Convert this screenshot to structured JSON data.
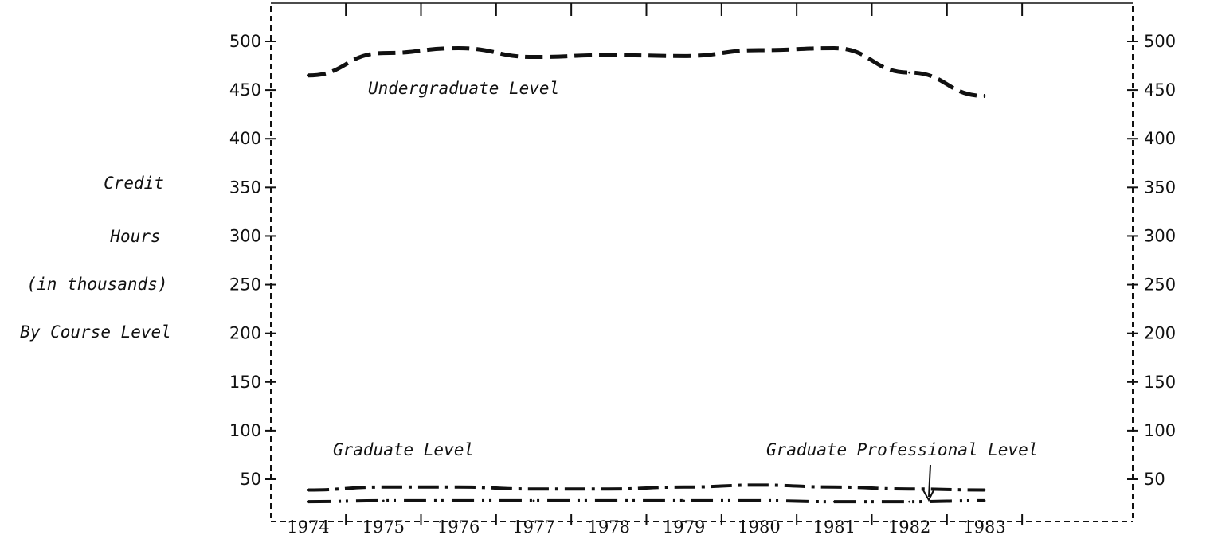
{
  "chart_data": {
    "type": "line",
    "ylabel_lines": [
      "Credit",
      "Hours",
      "(in thousands)",
      "By Course Level"
    ],
    "x": [
      "1974",
      "1975",
      "1976",
      "1977",
      "1978",
      "1979",
      "1980",
      "1981",
      "1982",
      "1983"
    ],
    "y_ticks": [
      50,
      100,
      150,
      200,
      250,
      300,
      350,
      400,
      450,
      500
    ],
    "ylim": [
      25,
      530
    ],
    "series": [
      {
        "name": "Undergraduate Level",
        "values": [
          465,
          488,
          493,
          484,
          486,
          485,
          491,
          493,
          468,
          444
        ],
        "style": "dashed",
        "color": "#111111"
      },
      {
        "name": "Graduate Level",
        "values": [
          39,
          42,
          42,
          40,
          40,
          42,
          44,
          42,
          40,
          39
        ],
        "style": "dash-dot",
        "color": "#111111"
      },
      {
        "name": "Graduate Professional Level",
        "values": [
          27,
          28,
          28,
          28,
          28,
          28,
          28,
          27,
          27,
          28
        ],
        "style": "dotted-dash",
        "color": "#111111"
      }
    ],
    "annotations": [
      {
        "text": "Undergraduate Level",
        "series": "Undergraduate Level"
      },
      {
        "text": "Graduate Level",
        "series": "Graduate Level"
      },
      {
        "text": "Graduate Professional Level",
        "series": "Graduate Professional Level",
        "arrow": true
      }
    ],
    "grid": false,
    "legend": "none"
  }
}
